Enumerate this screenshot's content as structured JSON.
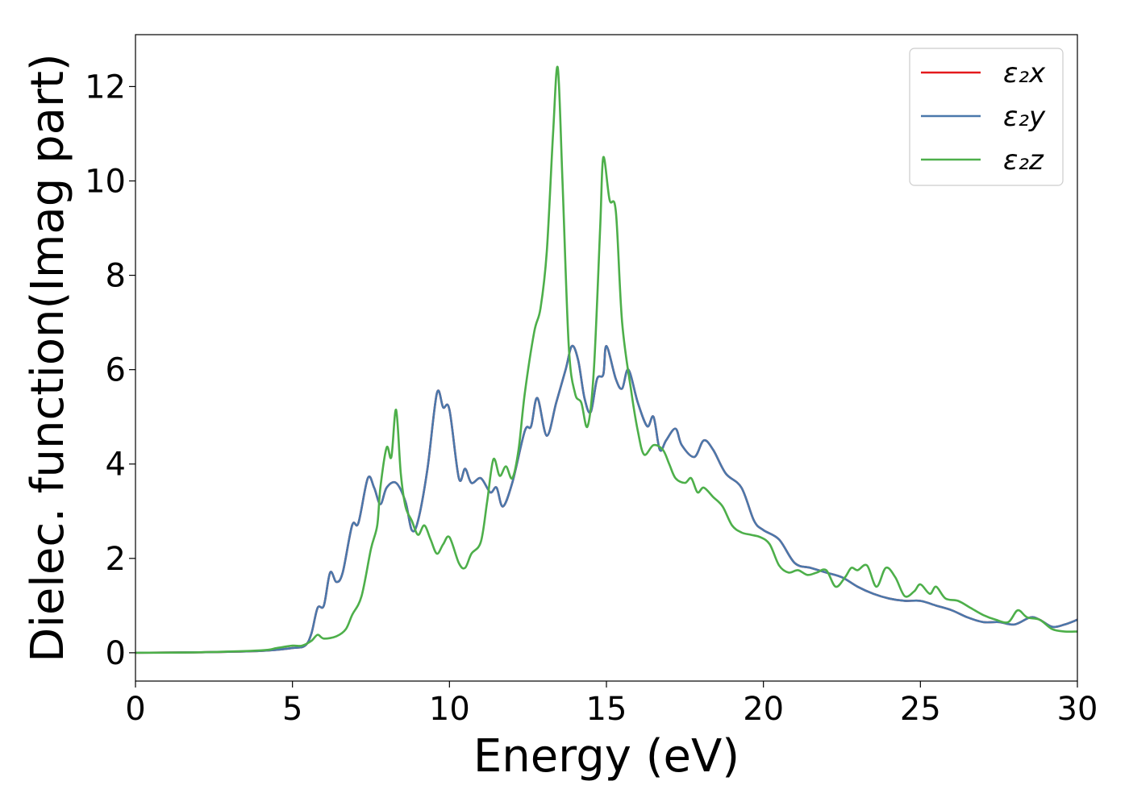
{
  "chart_data": {
    "type": "line",
    "xlabel": "Energy (eV)",
    "ylabel": "Dielec. function(Imag part)",
    "xlim": [
      0,
      30
    ],
    "ylim": [
      -0.6,
      13.1
    ],
    "xticks": [
      0,
      5,
      10,
      15,
      20,
      25,
      30
    ],
    "yticks": [
      0,
      2,
      4,
      6,
      8,
      10,
      12
    ],
    "grid": false,
    "legend_position": "top-right",
    "series": [
      {
        "name": "ε₂x",
        "color": "#e41a1c",
        "points": [
          [
            0,
            0
          ],
          [
            2,
            0.01
          ],
          [
            4,
            0.04
          ],
          [
            5,
            0.1
          ],
          [
            5.4,
            0.15
          ],
          [
            5.6,
            0.4
          ],
          [
            5.8,
            0.95
          ],
          [
            6.0,
            1.0
          ],
          [
            6.2,
            1.7
          ],
          [
            6.4,
            1.5
          ],
          [
            6.6,
            1.7
          ],
          [
            6.9,
            2.7
          ],
          [
            7.1,
            2.75
          ],
          [
            7.4,
            3.7
          ],
          [
            7.6,
            3.5
          ],
          [
            7.8,
            3.15
          ],
          [
            8.0,
            3.5
          ],
          [
            8.3,
            3.6
          ],
          [
            8.6,
            3.2
          ],
          [
            8.8,
            2.6
          ],
          [
            9.0,
            2.8
          ],
          [
            9.3,
            3.9
          ],
          [
            9.6,
            5.5
          ],
          [
            9.8,
            5.2
          ],
          [
            10.0,
            5.15
          ],
          [
            10.3,
            3.7
          ],
          [
            10.5,
            3.9
          ],
          [
            10.7,
            3.6
          ],
          [
            11.0,
            3.7
          ],
          [
            11.3,
            3.4
          ],
          [
            11.5,
            3.5
          ],
          [
            11.7,
            3.1
          ],
          [
            12.0,
            3.6
          ],
          [
            12.4,
            4.7
          ],
          [
            12.6,
            4.8
          ],
          [
            12.8,
            5.4
          ],
          [
            13.1,
            4.6
          ],
          [
            13.4,
            5.3
          ],
          [
            13.7,
            6.0
          ],
          [
            13.9,
            6.5
          ],
          [
            14.1,
            6.2
          ],
          [
            14.3,
            5.4
          ],
          [
            14.5,
            5.1
          ],
          [
            14.7,
            5.8
          ],
          [
            14.9,
            5.9
          ],
          [
            15.0,
            6.5
          ],
          [
            15.3,
            5.8
          ],
          [
            15.5,
            5.6
          ],
          [
            15.7,
            6.0
          ],
          [
            16.0,
            5.3
          ],
          [
            16.3,
            4.8
          ],
          [
            16.5,
            5.0
          ],
          [
            16.7,
            4.3
          ],
          [
            16.9,
            4.5
          ],
          [
            17.2,
            4.75
          ],
          [
            17.4,
            4.4
          ],
          [
            17.8,
            4.15
          ],
          [
            18.1,
            4.5
          ],
          [
            18.4,
            4.3
          ],
          [
            18.8,
            3.8
          ],
          [
            19.3,
            3.5
          ],
          [
            19.7,
            2.8
          ],
          [
            20.0,
            2.6
          ],
          [
            20.5,
            2.4
          ],
          [
            21.0,
            1.9
          ],
          [
            21.5,
            1.8
          ],
          [
            22.0,
            1.7
          ],
          [
            22.5,
            1.6
          ],
          [
            23.0,
            1.4
          ],
          [
            23.5,
            1.25
          ],
          [
            24.0,
            1.15
          ],
          [
            24.5,
            1.1
          ],
          [
            25.0,
            1.1
          ],
          [
            25.5,
            1.0
          ],
          [
            26.0,
            0.9
          ],
          [
            26.5,
            0.75
          ],
          [
            27.0,
            0.65
          ],
          [
            27.5,
            0.65
          ],
          [
            28.0,
            0.6
          ],
          [
            28.5,
            0.75
          ],
          [
            28.8,
            0.7
          ],
          [
            29.2,
            0.55
          ],
          [
            29.6,
            0.6
          ],
          [
            30.0,
            0.7
          ]
        ]
      },
      {
        "name": "ε₂y",
        "color": "#4a78ab",
        "points": [
          [
            0,
            0
          ],
          [
            2,
            0.01
          ],
          [
            4,
            0.04
          ],
          [
            5,
            0.1
          ],
          [
            5.4,
            0.15
          ],
          [
            5.6,
            0.4
          ],
          [
            5.8,
            0.95
          ],
          [
            6.0,
            1.0
          ],
          [
            6.2,
            1.7
          ],
          [
            6.4,
            1.5
          ],
          [
            6.6,
            1.7
          ],
          [
            6.9,
            2.7
          ],
          [
            7.1,
            2.75
          ],
          [
            7.4,
            3.7
          ],
          [
            7.6,
            3.5
          ],
          [
            7.8,
            3.15
          ],
          [
            8.0,
            3.5
          ],
          [
            8.3,
            3.6
          ],
          [
            8.6,
            3.2
          ],
          [
            8.8,
            2.6
          ],
          [
            9.0,
            2.8
          ],
          [
            9.3,
            3.9
          ],
          [
            9.6,
            5.5
          ],
          [
            9.8,
            5.2
          ],
          [
            10.0,
            5.15
          ],
          [
            10.3,
            3.7
          ],
          [
            10.5,
            3.9
          ],
          [
            10.7,
            3.6
          ],
          [
            11.0,
            3.7
          ],
          [
            11.3,
            3.4
          ],
          [
            11.5,
            3.5
          ],
          [
            11.7,
            3.1
          ],
          [
            12.0,
            3.6
          ],
          [
            12.4,
            4.7
          ],
          [
            12.6,
            4.8
          ],
          [
            12.8,
            5.4
          ],
          [
            13.1,
            4.6
          ],
          [
            13.4,
            5.3
          ],
          [
            13.7,
            6.0
          ],
          [
            13.9,
            6.5
          ],
          [
            14.1,
            6.2
          ],
          [
            14.3,
            5.4
          ],
          [
            14.5,
            5.1
          ],
          [
            14.7,
            5.8
          ],
          [
            14.9,
            5.9
          ],
          [
            15.0,
            6.5
          ],
          [
            15.3,
            5.8
          ],
          [
            15.5,
            5.6
          ],
          [
            15.7,
            6.0
          ],
          [
            16.0,
            5.3
          ],
          [
            16.3,
            4.8
          ],
          [
            16.5,
            5.0
          ],
          [
            16.7,
            4.3
          ],
          [
            16.9,
            4.5
          ],
          [
            17.2,
            4.75
          ],
          [
            17.4,
            4.4
          ],
          [
            17.8,
            4.15
          ],
          [
            18.1,
            4.5
          ],
          [
            18.4,
            4.3
          ],
          [
            18.8,
            3.8
          ],
          [
            19.3,
            3.5
          ],
          [
            19.7,
            2.8
          ],
          [
            20.0,
            2.6
          ],
          [
            20.5,
            2.4
          ],
          [
            21.0,
            1.9
          ],
          [
            21.5,
            1.8
          ],
          [
            22.0,
            1.7
          ],
          [
            22.5,
            1.6
          ],
          [
            23.0,
            1.4
          ],
          [
            23.5,
            1.25
          ],
          [
            24.0,
            1.15
          ],
          [
            24.5,
            1.1
          ],
          [
            25.0,
            1.1
          ],
          [
            25.5,
            1.0
          ],
          [
            26.0,
            0.9
          ],
          [
            26.5,
            0.75
          ],
          [
            27.0,
            0.65
          ],
          [
            27.5,
            0.65
          ],
          [
            28.0,
            0.6
          ],
          [
            28.5,
            0.75
          ],
          [
            28.8,
            0.7
          ],
          [
            29.2,
            0.55
          ],
          [
            29.6,
            0.6
          ],
          [
            30.0,
            0.7
          ]
        ]
      },
      {
        "name": "ε₂z",
        "color": "#4daf4a",
        "points": [
          [
            0,
            0
          ],
          [
            2,
            0.01
          ],
          [
            4,
            0.05
          ],
          [
            4.5,
            0.1
          ],
          [
            5.0,
            0.15
          ],
          [
            5.3,
            0.15
          ],
          [
            5.6,
            0.25
          ],
          [
            5.8,
            0.38
          ],
          [
            6.0,
            0.3
          ],
          [
            6.4,
            0.35
          ],
          [
            6.7,
            0.5
          ],
          [
            6.9,
            0.8
          ],
          [
            7.2,
            1.2
          ],
          [
            7.5,
            2.2
          ],
          [
            7.7,
            2.7
          ],
          [
            7.8,
            3.5
          ],
          [
            8.0,
            4.35
          ],
          [
            8.15,
            4.15
          ],
          [
            8.3,
            5.15
          ],
          [
            8.45,
            3.8
          ],
          [
            8.6,
            3.1
          ],
          [
            8.8,
            2.8
          ],
          [
            9.0,
            2.5
          ],
          [
            9.2,
            2.7
          ],
          [
            9.4,
            2.4
          ],
          [
            9.6,
            2.1
          ],
          [
            9.8,
            2.3
          ],
          [
            10.0,
            2.45
          ],
          [
            10.3,
            1.9
          ],
          [
            10.5,
            1.8
          ],
          [
            10.7,
            2.1
          ],
          [
            11.0,
            2.35
          ],
          [
            11.2,
            3.2
          ],
          [
            11.4,
            4.1
          ],
          [
            11.6,
            3.75
          ],
          [
            11.8,
            3.95
          ],
          [
            12.0,
            3.7
          ],
          [
            12.2,
            4.3
          ],
          [
            12.4,
            5.5
          ],
          [
            12.7,
            6.8
          ],
          [
            12.9,
            7.3
          ],
          [
            13.1,
            8.5
          ],
          [
            13.3,
            11.0
          ],
          [
            13.45,
            12.4
          ],
          [
            13.6,
            10.0
          ],
          [
            13.8,
            6.5
          ],
          [
            14.0,
            5.5
          ],
          [
            14.2,
            5.3
          ],
          [
            14.4,
            4.8
          ],
          [
            14.6,
            6.0
          ],
          [
            14.8,
            9.0
          ],
          [
            14.9,
            10.5
          ],
          [
            15.1,
            9.6
          ],
          [
            15.3,
            9.35
          ],
          [
            15.5,
            7.0
          ],
          [
            15.8,
            5.5
          ],
          [
            16.0,
            4.7
          ],
          [
            16.2,
            4.2
          ],
          [
            16.5,
            4.4
          ],
          [
            16.8,
            4.3
          ],
          [
            17.0,
            4.0
          ],
          [
            17.2,
            3.7
          ],
          [
            17.5,
            3.6
          ],
          [
            17.7,
            3.7
          ],
          [
            17.9,
            3.4
          ],
          [
            18.1,
            3.5
          ],
          [
            18.4,
            3.3
          ],
          [
            18.7,
            3.1
          ],
          [
            19.0,
            2.7
          ],
          [
            19.3,
            2.55
          ],
          [
            19.6,
            2.5
          ],
          [
            19.9,
            2.45
          ],
          [
            20.2,
            2.3
          ],
          [
            20.5,
            1.85
          ],
          [
            20.8,
            1.7
          ],
          [
            21.1,
            1.75
          ],
          [
            21.4,
            1.65
          ],
          [
            21.7,
            1.7
          ],
          [
            22.0,
            1.75
          ],
          [
            22.3,
            1.4
          ],
          [
            22.6,
            1.6
          ],
          [
            22.8,
            1.8
          ],
          [
            23.0,
            1.75
          ],
          [
            23.3,
            1.85
          ],
          [
            23.6,
            1.4
          ],
          [
            23.9,
            1.8
          ],
          [
            24.2,
            1.6
          ],
          [
            24.5,
            1.2
          ],
          [
            24.8,
            1.3
          ],
          [
            25.0,
            1.45
          ],
          [
            25.3,
            1.25
          ],
          [
            25.5,
            1.4
          ],
          [
            25.8,
            1.15
          ],
          [
            26.2,
            1.1
          ],
          [
            26.6,
            0.95
          ],
          [
            27.0,
            0.8
          ],
          [
            27.4,
            0.7
          ],
          [
            27.8,
            0.65
          ],
          [
            28.1,
            0.9
          ],
          [
            28.4,
            0.75
          ],
          [
            28.8,
            0.7
          ],
          [
            29.2,
            0.5
          ],
          [
            29.6,
            0.45
          ],
          [
            30.0,
            0.45
          ]
        ]
      }
    ]
  }
}
